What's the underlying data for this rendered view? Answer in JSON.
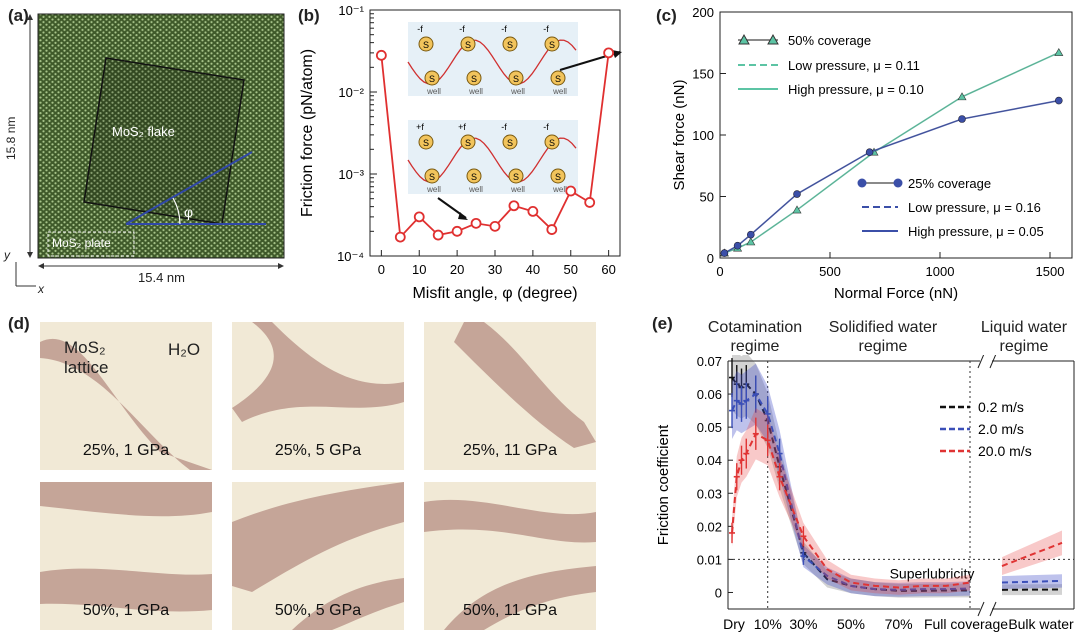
{
  "panel_a": {
    "label": "(a)",
    "width_label": "15.4 nm",
    "height_label": "15.8 nm",
    "flake_label": "MoS₂ flake",
    "plate_label": "MoS₂ plate",
    "angle_label": "φ",
    "axis_x": "x",
    "axis_y": "y",
    "colors": {
      "lattice": "#3f5a2a",
      "dots": "#a7c48a"
    }
  },
  "panel_d": {
    "label": "(d)",
    "material_label_1": "MoS₂",
    "material_label_2": "lattice",
    "water_label": "H₂O",
    "snapshots": [
      "25%, 1 GPa",
      "25%, 5 GPa",
      "25%, 11 GPa",
      "50%, 1 GPa",
      "50%, 5 GPa",
      "50%, 11 GPa"
    ]
  },
  "chart_data": [
    {
      "id": "b",
      "type": "line",
      "panel_label": "(b)",
      "xlabel": "Misfit angle, φ (degree)",
      "ylabel": "Friction force (pN/atom)",
      "yscale": "log",
      "xlim": [
        -3,
        63
      ],
      "ylim": [
        0.0001,
        0.1
      ],
      "xticks": [
        0,
        10,
        20,
        30,
        40,
        50,
        60
      ],
      "ytick_labels": [
        "10⁻⁴",
        "10⁻³",
        "10⁻²",
        "10⁻¹"
      ],
      "ytick_values": [
        0.0001,
        0.001,
        0.01,
        0.1
      ],
      "color": "#e03030",
      "series": [
        {
          "name": "friction",
          "x": [
            0,
            5,
            10,
            15,
            20,
            25,
            30,
            35,
            40,
            45,
            50,
            55,
            60
          ],
          "y": [
            0.028,
            0.00017,
            0.0003,
            0.00018,
            0.0002,
            0.00025,
            0.00023,
            0.00041,
            0.00035,
            0.00021,
            0.00062,
            0.00045,
            0.03
          ]
        }
      ],
      "inset": {
        "spring_labels": [
          "-f",
          "-f",
          "-f",
          "-f",
          "+f",
          "+f",
          "-f",
          "-f"
        ],
        "atom_label": "S",
        "well_label": "well"
      }
    },
    {
      "id": "c",
      "type": "line",
      "panel_label": "(c)",
      "xlabel": "Normal Force (nN)",
      "ylabel": "Shear force (nN)",
      "xlim": [
        0,
        1600
      ],
      "ylim": [
        0,
        200
      ],
      "xticks": [
        0,
        500,
        1000,
        1500
      ],
      "yticks": [
        0,
        50,
        100,
        150,
        200
      ],
      "series": [
        {
          "name": "50% coverage",
          "marker": "triangle",
          "color": "#5cc4a4",
          "x": [
            20,
            80,
            140,
            350,
            700,
            1100,
            1540
          ],
          "y": [
            4,
            8,
            13,
            39,
            86,
            131,
            167
          ]
        },
        {
          "name": "25% coverage",
          "marker": "circle",
          "color": "#3b4fa8",
          "x": [
            20,
            80,
            140,
            350,
            680,
            1100,
            1540
          ],
          "y": [
            4,
            10,
            19,
            52,
            86,
            113,
            128
          ]
        }
      ],
      "fits": [
        {
          "label": "Low pressure, μ = 0.11",
          "style": "dashed",
          "color": "#5cc4a4"
        },
        {
          "label": "High pressure, μ = 0.10",
          "style": "solid",
          "color": "#5cc4a4"
        },
        {
          "label": "Low pressure, μ = 0.16",
          "style": "dashed",
          "color": "#3b4fa8"
        },
        {
          "label": "High pressure, μ = 0.05",
          "style": "solid",
          "color": "#3b4fa8"
        }
      ]
    },
    {
      "id": "e",
      "type": "line",
      "panel_label": "(e)",
      "ylabel": "Friction coefficient",
      "ylim": [
        -0.005,
        0.07
      ],
      "yticks": [
        0,
        0.01,
        0.02,
        0.03,
        0.04,
        0.05,
        0.06,
        0.07
      ],
      "ytick_labels": [
        "0",
        "0.01",
        "0.02",
        "0.03",
        "0.04",
        "0.05",
        "0.06",
        "0.07"
      ],
      "xcategories": [
        "Dry",
        "10%",
        "30%",
        "50%",
        "70%",
        "Full coverage",
        "Bulk water"
      ],
      "x_positions": [
        0,
        10,
        30,
        50,
        70,
        100
      ],
      "regimes": [
        {
          "line1": "Cotamination",
          "line2": "regime"
        },
        {
          "line1": "Solidified water",
          "line2": "regime"
        },
        {
          "line1": "Liquid water",
          "line2": "regime"
        }
      ],
      "annotation": "Superlubricity",
      "threshold": 0.01,
      "series": [
        {
          "name": "0.2 m/s",
          "color": "#111111",
          "x": [
            0,
            2,
            4,
            6,
            10,
            15,
            20,
            30,
            40,
            50,
            60,
            70,
            80,
            90,
            100
          ],
          "y": [
            0.065,
            0.063,
            0.062,
            0.063,
            0.06,
            0.052,
            0.038,
            0.012,
            0.004,
            0.002,
            0.001,
            0.0005,
            0.0005,
            0.0006,
            0.0006
          ],
          "bulk": [
            0.0008,
            0.0009
          ]
        },
        {
          "name": "2.0 m/s",
          "color": "#3b4fb8",
          "x": [
            0,
            2,
            4,
            6,
            10,
            15,
            20,
            30,
            40,
            50,
            60,
            70,
            80,
            90,
            100
          ],
          "y": [
            0.055,
            0.058,
            0.057,
            0.058,
            0.06,
            0.054,
            0.042,
            0.011,
            0.005,
            0.002,
            0.001,
            0.0008,
            0.001,
            0.001,
            0.0012
          ],
          "bulk": [
            0.003,
            0.0035
          ]
        },
        {
          "name": "20.0 m/s",
          "color": "#e03434",
          "x": [
            0,
            2,
            4,
            6,
            10,
            15,
            20,
            30,
            40,
            50,
            60,
            70,
            80,
            90,
            100
          ],
          "y": [
            0.018,
            0.035,
            0.04,
            0.042,
            0.048,
            0.046,
            0.035,
            0.017,
            0.007,
            0.003,
            0.002,
            0.0015,
            0.002,
            0.002,
            0.003
          ],
          "bulk": [
            0.008,
            0.015
          ]
        }
      ]
    }
  ]
}
